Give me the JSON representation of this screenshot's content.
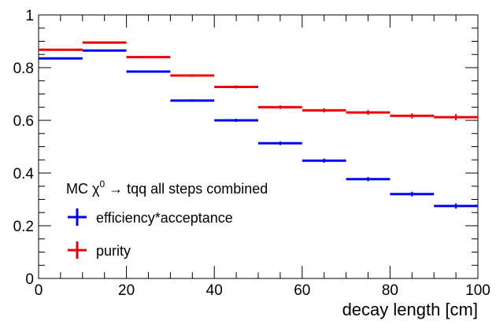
{
  "chart_data": {
    "type": "scatter",
    "title": "",
    "xlabel": "decay length [cm]",
    "ylabel": "",
    "xlim": [
      0,
      100
    ],
    "ylim": [
      0,
      1
    ],
    "x_ticks": [
      "0",
      "20",
      "40",
      "60",
      "80",
      "100"
    ],
    "y_ticks": [
      "0",
      "0.2",
      "0.4",
      "0.6",
      "0.8",
      "1"
    ],
    "grid": false,
    "legend_placement": "bottom-left",
    "legend_header": {
      "prefix": "MC ",
      "symbol": "χ",
      "superscript": "0",
      "suffix": " → tqq all steps combined"
    },
    "bin_edges": [
      0,
      10,
      20,
      30,
      40,
      50,
      60,
      70,
      80,
      90,
      100
    ],
    "series": [
      {
        "name": "efficiency*acceptance",
        "color": "#0000ee",
        "values": [
          0.835,
          0.865,
          0.785,
          0.675,
          0.6,
          0.513,
          0.447,
          0.377,
          0.32,
          0.275
        ],
        "errors": [
          0.004,
          0.004,
          0.004,
          0.005,
          0.006,
          0.007,
          0.008,
          0.008,
          0.009,
          0.01
        ]
      },
      {
        "name": "purity",
        "color": "#ee0000",
        "values": [
          0.868,
          0.895,
          0.84,
          0.77,
          0.727,
          0.65,
          0.638,
          0.63,
          0.617,
          0.612
        ],
        "errors": [
          0.003,
          0.003,
          0.003,
          0.005,
          0.006,
          0.007,
          0.008,
          0.009,
          0.01,
          0.012
        ]
      }
    ]
  }
}
